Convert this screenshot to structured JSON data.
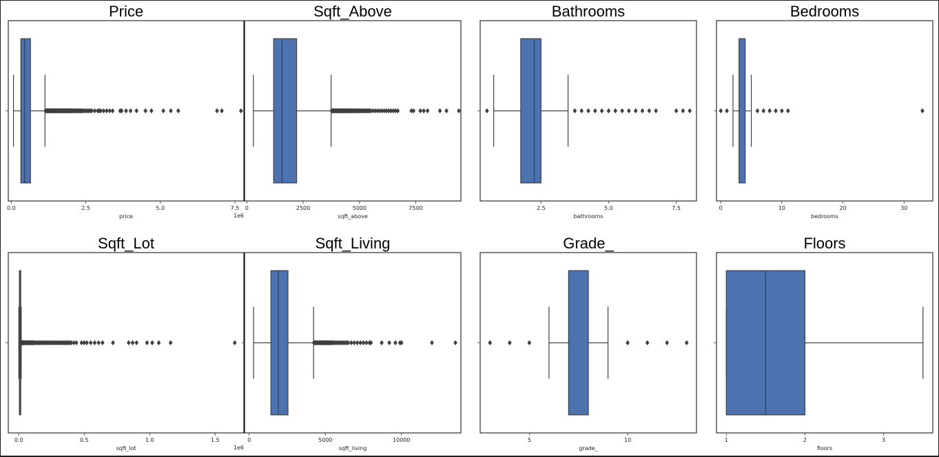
{
  "colors": {
    "box_fill": "#4c72b0",
    "line": "#3f3f3f",
    "frame": "#000000",
    "background": "#ffffff"
  },
  "chart_data": [
    {
      "type": "box",
      "title": "Price",
      "xlabel": "price",
      "offset_label": "1e6",
      "xlim": [
        -100000,
        7800000
      ],
      "xticks": [
        0,
        2500000,
        5000000,
        7500000
      ],
      "xtick_labels": [
        "0.0",
        "2.5",
        "5.0",
        "7.5"
      ],
      "stats": {
        "whisker_low": 75000,
        "q1": 322000,
        "median": 450000,
        "q3": 645000,
        "whisker_high": 1130000
      },
      "outliers": [
        1150000,
        1170000,
        1190000,
        1210000,
        1230000,
        1250000,
        1270000,
        1290000,
        1310000,
        1330000,
        1350000,
        1370000,
        1390000,
        1410000,
        1430000,
        1450000,
        1470000,
        1490000,
        1510000,
        1530000,
        1550000,
        1570000,
        1590000,
        1610000,
        1630000,
        1650000,
        1670000,
        1690000,
        1710000,
        1730000,
        1750000,
        1770000,
        1790000,
        1810000,
        1830000,
        1850000,
        1870000,
        1890000,
        1910000,
        1930000,
        1950000,
        1970000,
        1990000,
        2010000,
        2040000,
        2070000,
        2100000,
        2130000,
        2160000,
        2190000,
        2220000,
        2250000,
        2280000,
        2310000,
        2340000,
        2370000,
        2400000,
        2450000,
        2500000,
        2550000,
        2600000,
        2650000,
        2700000,
        2800000,
        2900000,
        2950000,
        3000000,
        3100000,
        3200000,
        3300000,
        3400000,
        3650000,
        3700000,
        3850000,
        4000000,
        4200000,
        4500000,
        4700000,
        5100000,
        5350000,
        5600000,
        6900000,
        7060000,
        7700000
      ]
    },
    {
      "type": "box",
      "title": "Sqft_Above",
      "xlabel": "sqft_above",
      "offset_label": "",
      "xlim": [
        -100,
        9500
      ],
      "xticks": [
        0,
        2500,
        5000,
        7500
      ],
      "xtick_labels": [
        "0",
        "2500",
        "5000",
        "7500"
      ],
      "stats": {
        "whisker_low": 290,
        "q1": 1190,
        "median": 1560,
        "q3": 2210,
        "whisker_high": 3740
      },
      "outliers": [
        3760,
        3790,
        3820,
        3850,
        3880,
        3910,
        3940,
        3970,
        4000,
        4030,
        4060,
        4090,
        4120,
        4150,
        4180,
        4210,
        4240,
        4270,
        4300,
        4330,
        4360,
        4390,
        4420,
        4450,
        4480,
        4510,
        4540,
        4570,
        4600,
        4630,
        4660,
        4690,
        4720,
        4760,
        4800,
        4840,
        4880,
        4920,
        4960,
        5000,
        5050,
        5100,
        5150,
        5200,
        5250,
        5300,
        5350,
        5400,
        5450,
        5500,
        5600,
        5700,
        5800,
        5900,
        6000,
        6100,
        6200,
        6300,
        6400,
        6500,
        6600,
        6700,
        7300,
        7400,
        7700,
        7850,
        8020,
        8570,
        8860,
        9410
      ]
    },
    {
      "type": "box",
      "title": "Bathrooms",
      "xlabel": "bathrooms",
      "offset_label": "",
      "xlim": [
        0.25,
        8.25
      ],
      "xticks": [
        2.5,
        5.0,
        7.5
      ],
      "xtick_labels": [
        "2.5",
        "5.0",
        "7.5"
      ],
      "stats": {
        "whisker_low": 0.75,
        "q1": 1.75,
        "median": 2.25,
        "q3": 2.5,
        "whisker_high": 3.5
      },
      "outliers": [
        0.5,
        3.75,
        4.0,
        4.25,
        4.5,
        4.75,
        5.0,
        5.25,
        5.5,
        5.75,
        6.0,
        6.25,
        6.5,
        6.75,
        7.5,
        7.75,
        8.0
      ]
    },
    {
      "type": "box",
      "title": "Bedrooms",
      "xlabel": "bedrooms",
      "offset_label": "",
      "xlim": [
        -0.7,
        34.7
      ],
      "xticks": [
        0,
        10,
        20,
        30
      ],
      "xtick_labels": [
        "0",
        "10",
        "20",
        "30"
      ],
      "stats": {
        "whisker_low": 2,
        "q1": 3,
        "median": 3,
        "q3": 4,
        "whisker_high": 5
      },
      "outliers": [
        0,
        1,
        6,
        7,
        8,
        9,
        10,
        11,
        33
      ]
    },
    {
      "type": "box",
      "title": "Sqft_Lot",
      "xlabel": "sqft_lot",
      "offset_label": "1e6",
      "xlim": [
        -80000,
        1720000
      ],
      "xticks": [
        0,
        500000,
        1000000,
        1500000
      ],
      "xtick_labels": [
        "0.0",
        "0.5",
        "1.0",
        "1.5"
      ],
      "stats": {
        "whisker_low": 520,
        "q1": 5040,
        "median": 7618,
        "q3": 10688,
        "whisker_high": 19141
      },
      "outliers": [
        19500,
        20500,
        22000,
        24000,
        26000,
        28000,
        30000,
        33000,
        36000,
        40000,
        45000,
        50000,
        55000,
        60000,
        65000,
        70000,
        75000,
        80000,
        85000,
        90000,
        95000,
        100000,
        105000,
        110000,
        115000,
        120000,
        130000,
        140000,
        150000,
        160000,
        170000,
        180000,
        190000,
        200000,
        210000,
        220000,
        230000,
        240000,
        250000,
        260000,
        270000,
        280000,
        290000,
        300000,
        310000,
        320000,
        330000,
        340000,
        350000,
        360000,
        370000,
        380000,
        390000,
        400000,
        420000,
        440000,
        480000,
        500000,
        520000,
        550000,
        580000,
        610000,
        640000,
        720000,
        840000,
        870000,
        900000,
        980000,
        1020000,
        1070000,
        1160000,
        1650000
      ]
    },
    {
      "type": "box",
      "title": "Sqft_Living",
      "xlabel": "sqft_living",
      "offset_label": "",
      "xlim": [
        -300,
        13900
      ],
      "xticks": [
        0,
        5000,
        10000
      ],
      "xtick_labels": [
        "0",
        "5000",
        "10000"
      ],
      "stats": {
        "whisker_low": 290,
        "q1": 1427,
        "median": 1910,
        "q3": 2550,
        "whisker_high": 4230
      },
      "outliers": [
        4250,
        4300,
        4350,
        4400,
        4450,
        4500,
        4550,
        4600,
        4650,
        4700,
        4750,
        4800,
        4850,
        4900,
        4950,
        5000,
        5050,
        5100,
        5150,
        5200,
        5250,
        5300,
        5350,
        5400,
        5450,
        5500,
        5600,
        5700,
        5800,
        5900,
        6000,
        6100,
        6200,
        6300,
        6400,
        6500,
        6700,
        6900,
        7100,
        7300,
        7500,
        7700,
        7900,
        8000,
        8700,
        9200,
        9600,
        9900,
        10000,
        12000,
        13540
      ]
    },
    {
      "type": "box",
      "title": "Grade_",
      "xlabel": "grade_",
      "offset_label": "",
      "xlim": [
        2.5,
        13.5
      ],
      "xticks": [
        5,
        10
      ],
      "xtick_labels": [
        "5",
        "10"
      ],
      "stats": {
        "whisker_low": 6,
        "q1": 7,
        "median": 7,
        "q3": 8,
        "whisker_high": 9
      },
      "outliers": [
        3,
        4,
        5,
        10,
        11,
        12,
        13
      ]
    },
    {
      "type": "box",
      "title": "Floors",
      "xlabel": "floors",
      "offset_label": "",
      "xlim": [
        0.875,
        3.625
      ],
      "xticks": [
        1,
        2,
        3
      ],
      "xtick_labels": [
        "1",
        "2",
        "3"
      ],
      "stats": {
        "whisker_low": 1,
        "q1": 1,
        "median": 1.5,
        "q3": 2,
        "whisker_high": 3.5
      },
      "outliers": []
    }
  ]
}
